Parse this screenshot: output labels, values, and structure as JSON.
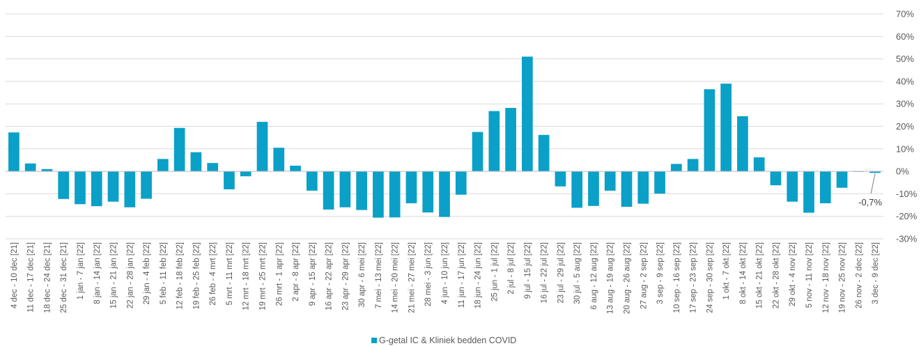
{
  "chart_data": {
    "type": "bar",
    "title": "",
    "xlabel": "",
    "ylabel": "",
    "ylim": [
      -30,
      70
    ],
    "y_tick_step": 10,
    "y_tick_suffix": "%",
    "grid": "horizontal",
    "legend_position": "bottom-center",
    "bar_color": "#0AA0C8",
    "categories": [
      "4 dec - 10 dec [21]",
      "11 dec - 17 dec [21]",
      "18 dec - 24 dec [21]",
      "25 dec - 31 dec [21]",
      "1 jan - 7 jan [22]",
      "8 jan - 14 jan [22]",
      "15 jan - 21 jan [22]",
      "22 jan - 28 jan [22]",
      "29 jan - 4 feb [22]",
      "5 feb - 11 feb [22]",
      "12 feb - 18 feb [22]",
      "19 feb - 25 feb [22]",
      "26 feb - 4 mrt [22]",
      "5 mrt - 11 mrt [22]",
      "12 mrt - 18 mrt [22]",
      "19 mrt - 25 mrt [22]",
      "26 mrt - 1 apr [22]",
      "2 apr - 8 apr [22]",
      "9 apr - 15 apr [22]",
      "16 apr - 22 apr [22]",
      "23 apr - 29 apr [22]",
      "30 apr - 6 mei [22]",
      "7 mei - 13 mei [22]",
      "14 mei - 20 mei [22]",
      "21 mei - 27 mei [22]",
      "28 mei - 3 jun [22]",
      "4 jun - 10 jun [22]",
      "11 jun - 17 jun [22]",
      "18 jun - 24 jun [22]",
      "25 jun - 1 jul [22]",
      "2 jul - 8 jul [22]",
      "9 jul - 15 jul [22]",
      "16 jul - 22 jul [22]",
      "23 jul - 29 jul [22]",
      "30 jul - 5 aug [22]",
      "6 aug - 12 aug [22]",
      "13 aug - 19 aug [22]",
      "20 aug - 26 aug [22]",
      "27 aug - 2 sep [22]",
      "3 sep - 9 sep [22]",
      "10 sep - 16 sep [22]",
      "17 sep - 23 sep [22]",
      "24 sep - 30 sep [22]",
      "1 okt - 7 okt [22]",
      "8 okt - 14 okt [22]",
      "15 okt - 21 okt [22]",
      "22 okt - 28 okt [22]",
      "29 okt - 4 nov [22]",
      "5 nov - 11 nov [22]",
      "12 nov - 18 nov [22]",
      "19 nov - 25 nov [22]",
      "26 nov - 2 dec [22]",
      "3 dec - 9 dec [22]"
    ],
    "series": [
      {
        "name": "G-getal IC & Kliniek bedden  COVID",
        "values": [
          17.3,
          3.5,
          1.0,
          -12.3,
          -14.6,
          -15.5,
          -13.5,
          -16.0,
          -12.2,
          5.5,
          19.3,
          8.5,
          3.7,
          -8.0,
          -2.2,
          22.0,
          10.5,
          2.5,
          -8.6,
          -17.0,
          -16.0,
          -17.2,
          -20.6,
          -20.5,
          -14.2,
          -18.3,
          -20.3,
          -10.4,
          17.5,
          26.8,
          28.2,
          51.0,
          16.2,
          -6.7,
          -16.2,
          -15.4,
          -8.6,
          -15.8,
          -14.4,
          -9.9,
          3.3,
          5.5,
          36.5,
          39.0,
          24.5,
          6.2,
          -6.2,
          -13.5,
          -18.4,
          -14.2,
          -7.3,
          -0.2,
          -0.7
        ]
      }
    ],
    "annotations": [
      {
        "category_index": 52,
        "text": "-0,7%"
      }
    ]
  }
}
